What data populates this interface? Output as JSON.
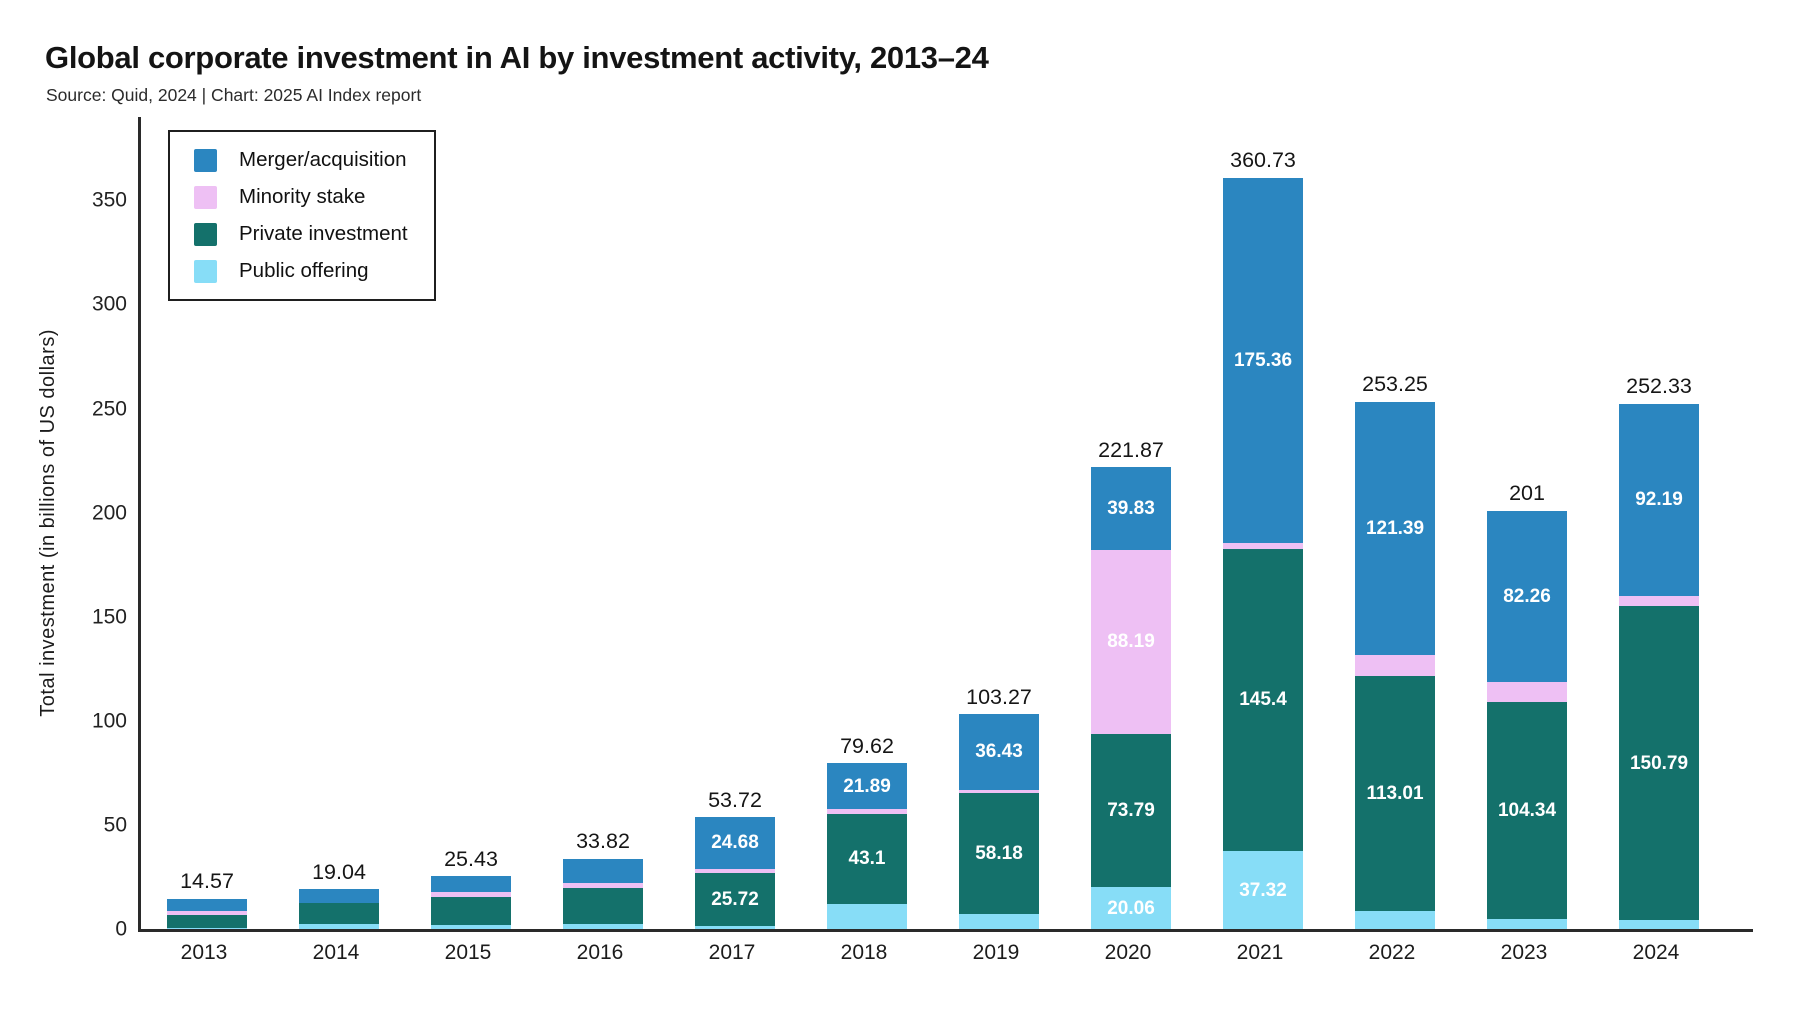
{
  "header": {
    "title": "Global corporate investment in AI by investment activity, 2013–24",
    "source": "Source: Quid, 2024 | Chart: 2025 AI Index report"
  },
  "chart_data": {
    "type": "bar",
    "stacked": true,
    "ylabel": "Total investment (in billions of US dollars)",
    "yticks": [
      0,
      50,
      100,
      150,
      200,
      250,
      300,
      350
    ],
    "ylim": [
      0,
      390
    ],
    "grid": false,
    "legend_position": "top-left",
    "categories": [
      "2013",
      "2014",
      "2015",
      "2016",
      "2017",
      "2018",
      "2019",
      "2020",
      "2021",
      "2022",
      "2023",
      "2024"
    ],
    "totals": [
      "14.57",
      "19.04",
      "25.43",
      "33.82",
      "53.72",
      "79.62",
      "103.27",
      "221.87",
      "360.73",
      "253.25",
      "201",
      "252.33"
    ],
    "stack_order_note": "series listed bottom-to-top",
    "series": [
      {
        "name": "Public offering",
        "color": "#87ddf7",
        "values": [
          0.47,
          2.61,
          1.93,
          2.62,
          1.42,
          12.23,
          7.21,
          20.06,
          37.32,
          8.75,
          4.8,
          4.25
        ],
        "labels": [
          null,
          null,
          null,
          null,
          null,
          null,
          null,
          "20.06",
          "37.32",
          null,
          null,
          null
        ]
      },
      {
        "name": "Private investment",
        "color": "#14716b",
        "values": [
          6.1,
          10.0,
          13.4,
          17.3,
          25.72,
          43.1,
          58.18,
          73.79,
          145.4,
          113.01,
          104.34,
          150.79
        ],
        "labels": [
          null,
          null,
          null,
          null,
          "25.72",
          "43.1",
          "58.18",
          "73.79",
          "145.4",
          "113.01",
          "104.34",
          "150.79"
        ]
      },
      {
        "name": "Minority stake",
        "color": "#eec0f4",
        "values": [
          2.2,
          0.1,
          2.4,
          2.4,
          1.9,
          2.4,
          1.45,
          88.19,
          2.65,
          10.1,
          9.6,
          5.1
        ],
        "labels": [
          null,
          null,
          null,
          null,
          null,
          null,
          null,
          "88.19",
          null,
          null,
          null,
          null
        ]
      },
      {
        "name": "Merger/acquisition",
        "color": "#2b86c0",
        "values": [
          5.8,
          6.33,
          7.7,
          11.5,
          24.68,
          21.89,
          36.43,
          39.83,
          175.36,
          121.39,
          82.26,
          92.19
        ],
        "labels": [
          null,
          null,
          null,
          null,
          "24.68",
          "21.89",
          "36.43",
          "39.83",
          "175.36",
          "121.39",
          "82.26",
          "92.19"
        ]
      }
    ],
    "legend_items": [
      {
        "label": "Merger/acquisition",
        "color": "#2b86c0"
      },
      {
        "label": "Minority stake",
        "color": "#eec0f4"
      },
      {
        "label": "Private investment",
        "color": "#14716b"
      },
      {
        "label": "Public offering",
        "color": "#87ddf7"
      }
    ]
  }
}
